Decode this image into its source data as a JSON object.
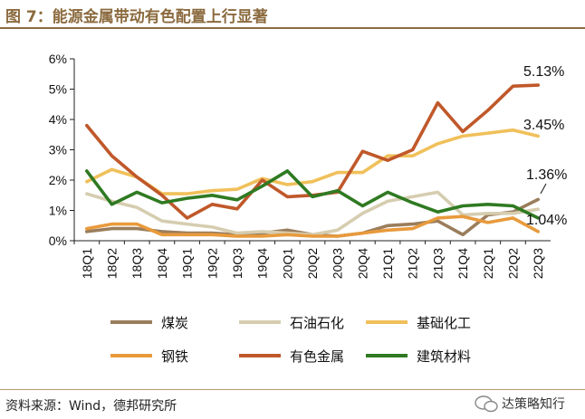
{
  "header": {
    "title": "图 7：能源金属带动有色配置上行显著"
  },
  "footer": {
    "source": "资料来源：Wind，德邦研究所",
    "watermark": "达策略知行"
  },
  "colors": {
    "title": "#8b6a3e",
    "coal": "#9a7d5c",
    "petro": "#d6cdb0",
    "basic_chem": "#f0c05a",
    "steel": "#e89a3c",
    "nonferrous": "#c0582a",
    "building": "#2f7a22"
  },
  "chart_data": {
    "type": "line",
    "title": "能源金属带动有色配置上行显著",
    "xlabel": "",
    "ylabel": "",
    "ylim": [
      0,
      6
    ],
    "yticks": [
      "0%",
      "1%",
      "2%",
      "3%",
      "4%",
      "5%",
      "6%"
    ],
    "categories": [
      "18Q1",
      "18Q2",
      "18Q3",
      "18Q4",
      "19Q1",
      "19Q2",
      "19Q3",
      "19Q4",
      "20Q1",
      "20Q2",
      "20Q3",
      "20Q4",
      "21Q1",
      "21Q2",
      "21Q3",
      "21Q4",
      "22Q1",
      "22Q2",
      "22Q3"
    ],
    "series": [
      {
        "name": "煤炭",
        "color_key": "coal",
        "values": [
          0.3,
          0.4,
          0.4,
          0.3,
          0.25,
          0.25,
          0.2,
          0.25,
          0.35,
          0.2,
          0.15,
          0.25,
          0.5,
          0.55,
          0.65,
          0.2,
          0.85,
          0.95,
          1.36
        ]
      },
      {
        "name": "石油石化",
        "color_key": "petro",
        "values": [
          1.55,
          1.3,
          1.1,
          0.65,
          0.55,
          0.45,
          0.25,
          0.3,
          0.25,
          0.2,
          0.35,
          0.9,
          1.3,
          1.45,
          1.6,
          0.85,
          0.9,
          0.9,
          1.04
        ]
      },
      {
        "name": "基础化工",
        "color_key": "basic_chem",
        "values": [
          1.95,
          2.35,
          2.1,
          1.55,
          1.55,
          1.65,
          1.7,
          2.05,
          1.85,
          1.95,
          2.25,
          2.25,
          2.8,
          2.8,
          3.2,
          3.45,
          3.55,
          3.65,
          3.45
        ]
      },
      {
        "name": "钢铁",
        "color_key": "steel",
        "values": [
          0.4,
          0.55,
          0.55,
          0.2,
          0.2,
          0.2,
          0.15,
          0.15,
          0.2,
          0.15,
          0.15,
          0.25,
          0.35,
          0.4,
          0.75,
          0.8,
          0.6,
          0.75,
          0.3
        ]
      },
      {
        "name": "有色金属",
        "color_key": "nonferrous",
        "values": [
          3.8,
          2.8,
          2.1,
          1.5,
          0.75,
          1.2,
          1.05,
          2.0,
          1.45,
          1.5,
          1.6,
          2.95,
          2.65,
          3.0,
          4.55,
          3.6,
          4.3,
          5.1,
          5.13
        ]
      },
      {
        "name": "建筑材料",
        "color_key": "building",
        "values": [
          2.3,
          1.2,
          1.6,
          1.25,
          1.4,
          1.5,
          1.35,
          1.8,
          2.3,
          1.45,
          1.65,
          1.15,
          1.6,
          1.25,
          0.95,
          1.15,
          1.2,
          1.15,
          0.75
        ]
      }
    ],
    "annotations": [
      "5.13%",
      "3.45%",
      "1.36%",
      "1.04%"
    ],
    "legend": {
      "position": "bottom",
      "columns": 3
    }
  }
}
